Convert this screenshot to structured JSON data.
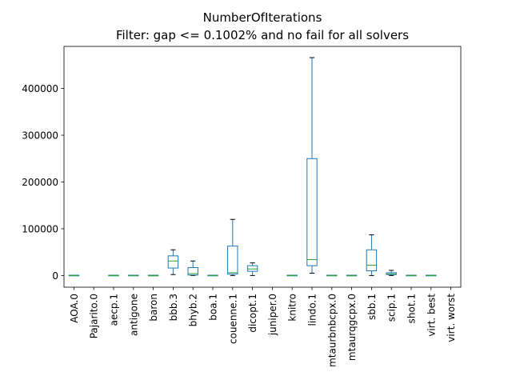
{
  "chart_data": {
    "type": "box",
    "title": "NumberOfIterations",
    "subtitle": "Filter: gap <= 0.1002% and no fail for all solvers",
    "xlabel": "",
    "ylabel": "",
    "ylim": [
      -25000,
      490000
    ],
    "yticks": [
      0,
      100000,
      200000,
      300000,
      400000
    ],
    "grid": false,
    "categories": [
      "AOA.0",
      "Pajarito.0",
      "aecp.1",
      "antigone",
      "baron",
      "bbb.3",
      "bhyb.2",
      "boa.1",
      "couenne.1",
      "dicopt.1",
      "juniper.0",
      "knitro",
      "lindo.1",
      "mtaurbnbcpx.0",
      "mtaurqgcpx.0",
      "sbb.1",
      "scip.1",
      "shot.1",
      "virt. best",
      "virt. worst"
    ],
    "boxes": [
      {
        "label": "AOA.0",
        "whislo": 0,
        "q1": 0,
        "med": 0,
        "q3": 0,
        "whishi": 0
      },
      {
        "label": "Pajarito.0",
        "whislo": null,
        "q1": null,
        "med": null,
        "q3": null,
        "whishi": null
      },
      {
        "label": "aecp.1",
        "whislo": 0,
        "q1": 0,
        "med": 0,
        "q3": 0,
        "whishi": 0
      },
      {
        "label": "antigone",
        "whislo": 0,
        "q1": 0,
        "med": 0,
        "q3": 0,
        "whishi": 0
      },
      {
        "label": "baron",
        "whislo": 0,
        "q1": 0,
        "med": 0,
        "q3": 0,
        "whishi": 0
      },
      {
        "label": "bbb.3",
        "whislo": 2000,
        "q1": 16000,
        "med": 31000,
        "q3": 42000,
        "whishi": 55000
      },
      {
        "label": "bhyb.2",
        "whislo": 0,
        "q1": 1000,
        "med": 4000,
        "q3": 17000,
        "whishi": 31000
      },
      {
        "label": "boa.1",
        "whislo": 0,
        "q1": 0,
        "med": 0,
        "q3": 0,
        "whishi": 0
      },
      {
        "label": "couenne.1",
        "whislo": 0,
        "q1": 3000,
        "med": 6000,
        "q3": 63000,
        "whishi": 120000
      },
      {
        "label": "dicopt.1",
        "whislo": 0,
        "q1": 9000,
        "med": 14000,
        "q3": 21000,
        "whishi": 27000
      },
      {
        "label": "juniper.0",
        "whislo": null,
        "q1": null,
        "med": null,
        "q3": null,
        "whishi": null
      },
      {
        "label": "knitro",
        "whislo": 0,
        "q1": 0,
        "med": 0,
        "q3": 0,
        "whishi": 0
      },
      {
        "label": "lindo.1",
        "whislo": 5000,
        "q1": 21000,
        "med": 34000,
        "q3": 250000,
        "whishi": 466000
      },
      {
        "label": "mtaurbnbcpx.0",
        "whislo": 0,
        "q1": 0,
        "med": 0,
        "q3": 0,
        "whishi": 0
      },
      {
        "label": "mtaurqgcpx.0",
        "whislo": 0,
        "q1": 0,
        "med": 0,
        "q3": 0,
        "whishi": 0
      },
      {
        "label": "sbb.1",
        "whislo": 0,
        "q1": 10000,
        "med": 22000,
        "q3": 55000,
        "whishi": 87000
      },
      {
        "label": "scip.1",
        "whislo": 0,
        "q1": 2000,
        "med": 3500,
        "q3": 6000,
        "whishi": 11000
      },
      {
        "label": "shot.1",
        "whislo": 0,
        "q1": 0,
        "med": 0,
        "q3": 0,
        "whishi": 0
      },
      {
        "label": "virt. best",
        "whislo": 0,
        "q1": 0,
        "med": 0,
        "q3": 0,
        "whishi": 0
      },
      {
        "label": "virt. worst",
        "whislo": null,
        "q1": null,
        "med": null,
        "q3": null,
        "whishi": null
      }
    ],
    "colors": {
      "box": "#1f77b4",
      "median": "#2ca02c",
      "whisker": "#000000",
      "axis": "#000000"
    }
  }
}
